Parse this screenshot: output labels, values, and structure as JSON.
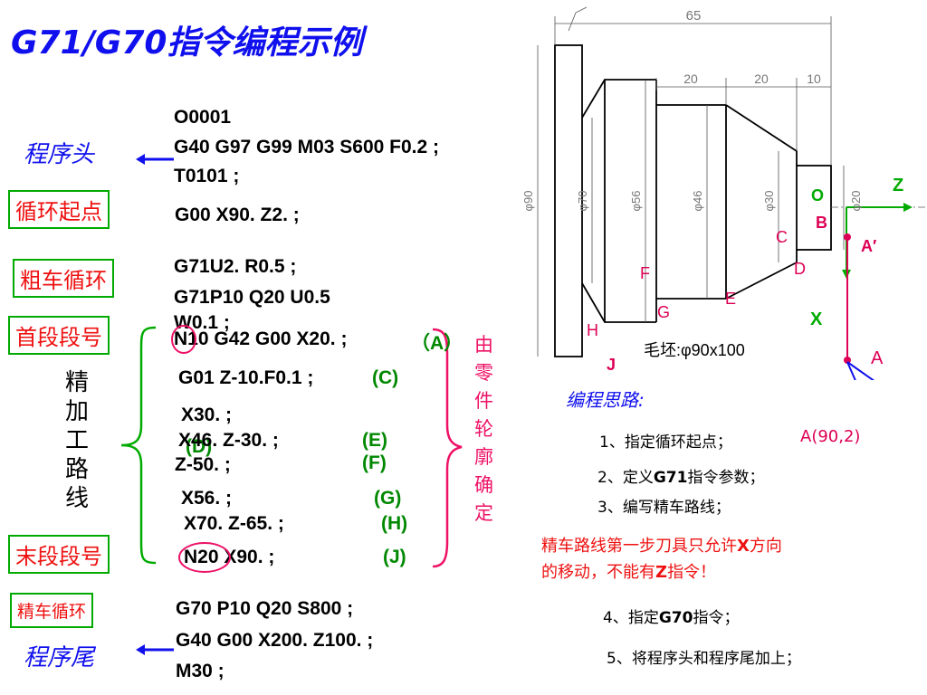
{
  "title": "G71/G70指令编程示例",
  "labels": {
    "program_head": "程序头",
    "cycle_start": "循环起点",
    "rough_cycle": "粗车循环",
    "first_seq": "首段段号",
    "finish_path": "精加工路线",
    "last_seq": "末段段号",
    "finish_cycle": "精车循环",
    "program_tail": "程序尾",
    "by_contour": "由零件轮廓确定"
  },
  "code": {
    "l1": "O0001",
    "l2": "G40 G97 G99 M03 S600 F0.2 ;",
    "l3": "T0101 ;",
    "l4": "G00 X90. Z2. ;",
    "l5": "G71U2. R0.5 ;",
    "l6": "G71P10 Q20 U0.5",
    "l7": "W0.1 ;",
    "l8": "N10 G42 G00 X20. ;",
    "l8_tag": "（A）",
    "l9": "G01 Z-10.F0.1 ;",
    "l9_tag": "(C)",
    "l10": "X30. ;",
    "l10_tag": "(D)",
    "l11": "X46. Z-30. ;",
    "l11_tag": "(E)",
    "l12": "Z-50. ;",
    "l12_tag": "(F)",
    "l13": "X56. ;",
    "l13_tag": "(G)",
    "l14": "X70. Z-65. ;",
    "l14_tag": "(H)",
    "l15": "N20 X90. ;",
    "l15_tag": "(J)",
    "l16": "G70 P10 Q20 S800 ;",
    "l17": "G40 G00 X200. Z100. ;",
    "l18": "M30 ;"
  },
  "drawing": {
    "dim_total": "65",
    "dim_20a": "20",
    "dim_20b": "20",
    "dim_10": "10",
    "dia_90": "φ90",
    "dia_70": "φ70",
    "dia_56": "φ56",
    "dia_46": "φ46",
    "dia_30": "φ30",
    "dia_20": "φ20",
    "pt_O": "O",
    "pt_B": "B",
    "pt_C": "C",
    "pt_D": "D",
    "pt_E": "E",
    "pt_F": "F",
    "pt_G": "G",
    "pt_H": "H",
    "pt_J": "J",
    "pt_A1": "A′",
    "pt_A": "A",
    "axis_Z": "Z",
    "axis_X": "X",
    "blank": "毛坯:φ90x100"
  },
  "plan": {
    "title": "编程思路:",
    "s1": "1、指定循环起点；",
    "s1_val": "A(90,2)",
    "s2a": "2、定义",
    "s2b": "G71",
    "s2c": "指令参数；",
    "s3": "3、编写精车路线；",
    "note1a": "精车路线第一步刀具只允许",
    "note1b": "X",
    "note1c": "方向",
    "note2a": "的移动，不能有",
    "note2b": "Z",
    "note2c": "指令！",
    "s4a": "4、指定",
    "s4b": "G70",
    "s4c": "指令；",
    "s5": "5、将程序头和程序尾加上；"
  },
  "colors": {
    "title_blue": "#1010ee",
    "label_red": "#ee1111",
    "box_green": "#00aa00",
    "tag_green": "#008800",
    "brace_pink": "#ee1166",
    "axis_green": "#00aa00",
    "point_red": "#dd0055"
  }
}
